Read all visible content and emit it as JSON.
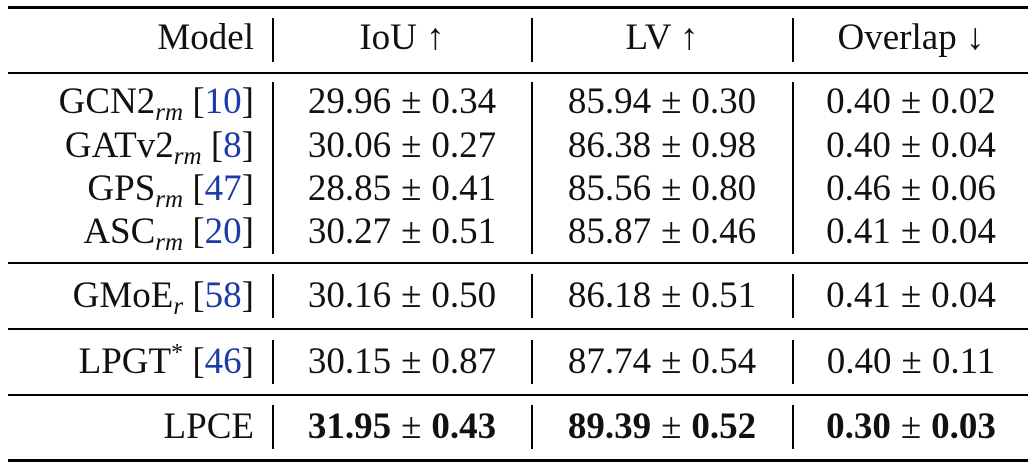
{
  "header": {
    "model": "Model",
    "iou": "IoU ↑",
    "lv": "LV ↑",
    "overlap": "Overlap ↓"
  },
  "pm": "±",
  "rows": [
    {
      "name": "GCN2",
      "sub": "rm",
      "sup": "",
      "ref": "10",
      "iou_mean": "29.96",
      "iou_std": "0.34",
      "lv_mean": "85.94",
      "lv_std": "0.30",
      "ov_mean": "0.40",
      "ov_std": "0.02"
    },
    {
      "name": "GATv2",
      "sub": "rm",
      "sup": "",
      "ref": "8",
      "iou_mean": "30.06",
      "iou_std": "0.27",
      "lv_mean": "86.38",
      "lv_std": "0.98",
      "ov_mean": "0.40",
      "ov_std": "0.04"
    },
    {
      "name": "GPS",
      "sub": "rm",
      "sup": "",
      "ref": "47",
      "iou_mean": "28.85",
      "iou_std": "0.41",
      "lv_mean": "85.56",
      "lv_std": "0.80",
      "ov_mean": "0.46",
      "ov_std": "0.06"
    },
    {
      "name": "ASC",
      "sub": "rm",
      "sup": "",
      "ref": "20",
      "iou_mean": "30.27",
      "iou_std": "0.51",
      "lv_mean": "85.87",
      "lv_std": "0.46",
      "ov_mean": "0.41",
      "ov_std": "0.04"
    },
    {
      "name": "GMoE",
      "sub": "r",
      "sup": "",
      "ref": "58",
      "iou_mean": "30.16",
      "iou_std": "0.50",
      "lv_mean": "86.18",
      "lv_std": "0.51",
      "ov_mean": "0.41",
      "ov_std": "0.04"
    },
    {
      "name": "LPGT",
      "sub": "",
      "sup": "*",
      "ref": "46",
      "iou_mean": "30.15",
      "iou_std": "0.87",
      "lv_mean": "87.74",
      "lv_std": "0.54",
      "ov_mean": "0.40",
      "ov_std": "0.11"
    },
    {
      "name": "LPCE",
      "sub": "",
      "sup": "",
      "ref": "",
      "iou_mean": "31.95",
      "iou_std": "0.43",
      "lv_mean": "89.39",
      "lv_std": "0.52",
      "ov_mean": "0.30",
      "ov_std": "0.03"
    }
  ]
}
